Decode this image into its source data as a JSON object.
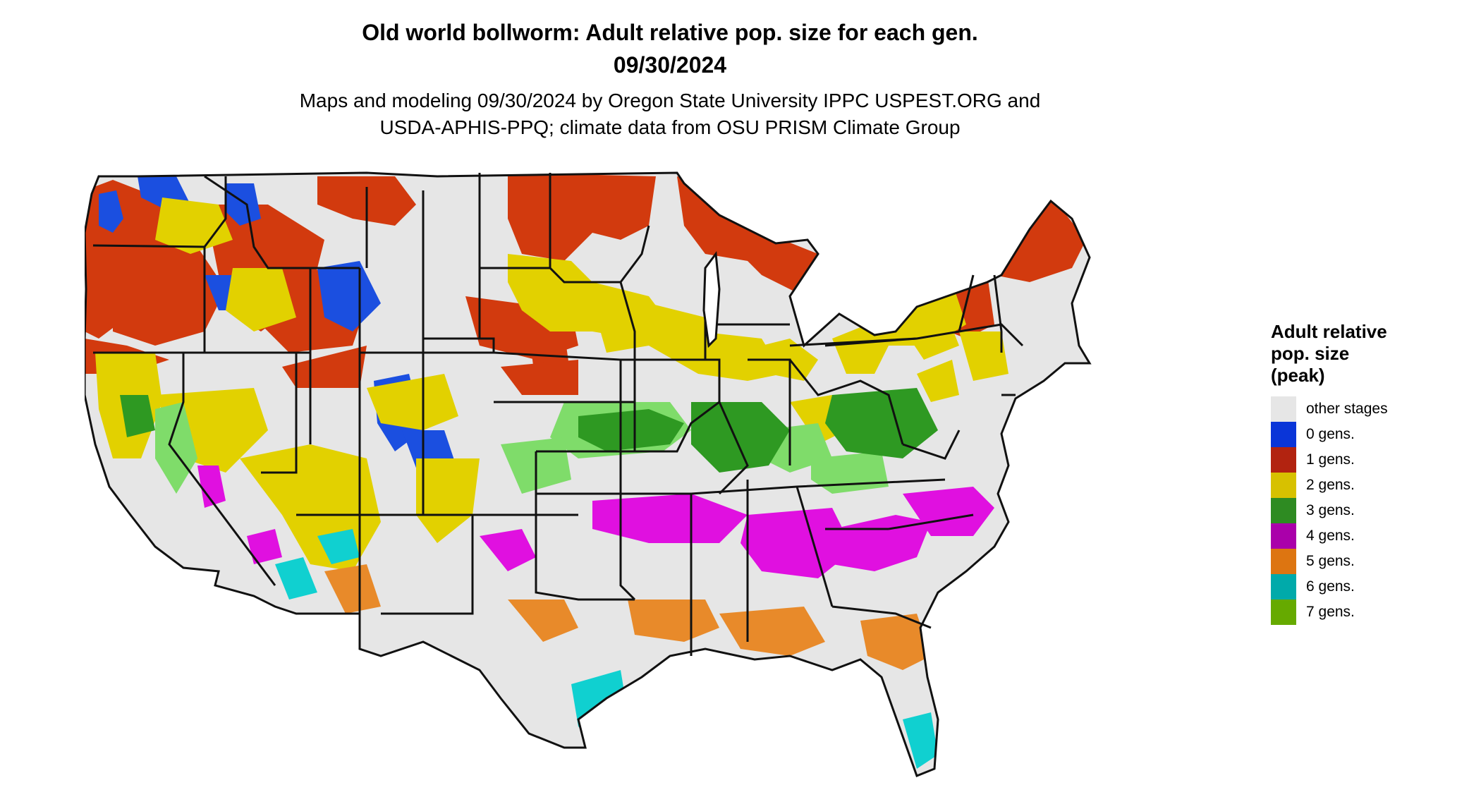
{
  "header": {
    "title_line1": "Old world bollworm: Adult relative pop. size for each gen.",
    "title_line2": "09/30/2024",
    "subtitle_line1": "Maps and modeling 09/30/2024 by Oregon State University IPPC USPEST.ORG and",
    "subtitle_line2": "USDA-APHIS-PPQ; climate data from OSU PRISM Climate Group"
  },
  "legend": {
    "title_line1": "Adult relative",
    "title_line2": "pop. size",
    "title_line3": "(peak)",
    "items": [
      {
        "label": "other stages",
        "color": "#e6e6e6"
      },
      {
        "label": "0 gens.",
        "color": "#0a35d8"
      },
      {
        "label": "1 gens.",
        "color": "#b22310"
      },
      {
        "label": "2 gens.",
        "color": "#d7c100"
      },
      {
        "label": "3 gens.",
        "color": "#2e8b22"
      },
      {
        "label": "4 gens.",
        "color": "#aa00aa"
      },
      {
        "label": "5 gens.",
        "color": "#dd7511"
      },
      {
        "label": "6 gens.",
        "color": "#00aaaa"
      },
      {
        "label": "7 gens.",
        "color": "#66aa00"
      }
    ]
  },
  "map": {
    "region": "Contiguous United States",
    "base_color": "#e6e6e6",
    "zone_colors": {
      "1_gen": "#d23a0e",
      "0_gen": "#1b4fe0",
      "2_gen": "#e2d100",
      "3_gen_light": "#7fdc6a",
      "3_gen_dark": "#2e9922",
      "4_gen": "#e010e0",
      "5_gen": "#e88a2a",
      "6_gen": "#10d0d0",
      "7_gen": "#7ccc10"
    }
  }
}
